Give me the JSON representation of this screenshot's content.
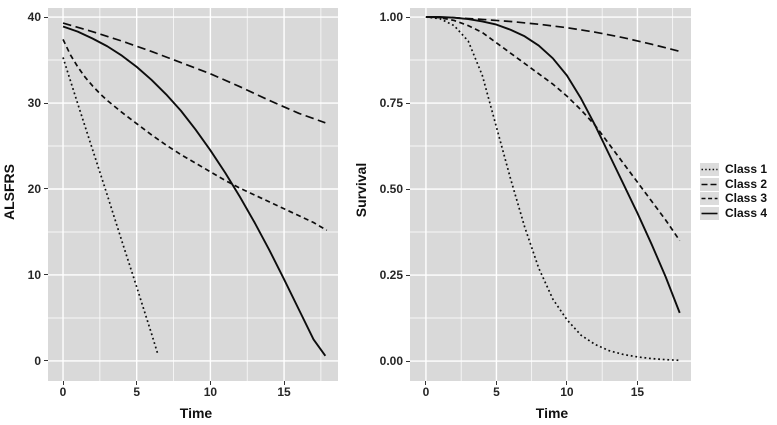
{
  "figure": {
    "background": "#ffffff",
    "description": "Two-panel line chart: latent class trajectories of ALSFRS over time (left) and survival probability over time (right) for four classes"
  },
  "colors": {
    "panel_bg": "#d9d9d9",
    "grid_major": "#ffffff",
    "grid_minor": "#ffffff",
    "line": "#0d0d0d",
    "tick_mark": "#333333",
    "text": "#111111",
    "legend_key_bg": "#dcdcdc"
  },
  "legend": {
    "position": "right",
    "entries": [
      {
        "label": "Class 1",
        "linetype": "dotted"
      },
      {
        "label": "Class 2",
        "linetype": "longdash"
      },
      {
        "label": "Class 3",
        "linetype": "dashed"
      },
      {
        "label": "Class 4",
        "linetype": "solid"
      }
    ]
  },
  "chart_data": [
    {
      "type": "line",
      "title": "",
      "xlabel": "Time",
      "ylabel": "ALSFRS",
      "xlim": [
        -1.02,
        18.66
      ],
      "ylim": [
        -2.33,
        41.05
      ],
      "xticks": [
        0,
        5,
        10,
        15
      ],
      "xtick_labels": [
        "0",
        "5",
        "10",
        "15"
      ],
      "xticks_minor": [
        2.5,
        7.5,
        12.5,
        17.5
      ],
      "yticks": [
        0,
        10,
        20,
        30,
        40
      ],
      "ytick_labels": [
        "0",
        "10",
        "20",
        "30",
        "40"
      ],
      "yticks_minor": [
        5,
        15,
        25,
        35
      ],
      "grid": true,
      "series": [
        {
          "name": "Class 1",
          "linetype": "dotted",
          "x": [
            0,
            1,
            2,
            3,
            4,
            5,
            6,
            6.45
          ],
          "y": [
            35.3,
            29.9,
            24.6,
            19.3,
            13.9,
            8.6,
            3.2,
            0.7
          ]
        },
        {
          "name": "Class 2",
          "linetype": "longdash",
          "x": [
            0,
            2,
            4,
            6,
            8,
            10,
            12,
            14,
            16,
            17.8
          ],
          "y": [
            39.3,
            38.3,
            37.2,
            36.0,
            34.7,
            33.4,
            31.9,
            30.3,
            28.8,
            27.7
          ]
        },
        {
          "name": "Class 3",
          "linetype": "dashed",
          "x": [
            0,
            0.5,
            1,
            1.5,
            2,
            2.5,
            3,
            4,
            5,
            6,
            7,
            8,
            9,
            10,
            11,
            12,
            13,
            14,
            15,
            16,
            17,
            17.9
          ],
          "y": [
            37.4,
            35.6,
            34.2,
            33.0,
            32.0,
            31.1,
            30.3,
            28.9,
            27.6,
            26.3,
            25.1,
            24.0,
            23.0,
            22.0,
            21.0,
            20.1,
            19.3,
            18.5,
            17.7,
            16.9,
            16.1,
            15.2
          ]
        },
        {
          "name": "Class 4",
          "linetype": "solid",
          "x": [
            0,
            1,
            2,
            3,
            4,
            5,
            6,
            7,
            8,
            9,
            10,
            11,
            12,
            13,
            14,
            15,
            16,
            17,
            17.8
          ],
          "y": [
            38.9,
            38.3,
            37.5,
            36.6,
            35.5,
            34.2,
            32.7,
            31.0,
            29.1,
            26.9,
            24.5,
            21.9,
            19.1,
            16.1,
            12.9,
            9.5,
            6.0,
            2.5,
            0.6
          ]
        }
      ]
    },
    {
      "type": "line",
      "title": "",
      "xlabel": "Time",
      "ylabel": "Survival",
      "xlim": [
        -1.13,
        18.8
      ],
      "ylim": [
        -0.0581,
        1.0262
      ],
      "xticks": [
        0,
        5,
        10,
        15
      ],
      "xtick_labels": [
        "0",
        "5",
        "10",
        "15"
      ],
      "xticks_minor": [
        2.5,
        7.5,
        12.5,
        17.5
      ],
      "yticks": [
        0.0,
        0.25,
        0.5,
        0.75,
        1.0
      ],
      "ytick_labels": [
        "0.00",
        "0.25",
        "0.50",
        "0.75",
        "1.00"
      ],
      "yticks_minor": [
        0.125,
        0.375,
        0.625,
        0.875
      ],
      "grid": true,
      "series": [
        {
          "name": "Class 1",
          "linetype": "dotted",
          "x": [
            0,
            1,
            2,
            3,
            4,
            5,
            6,
            7,
            8,
            9,
            10,
            11,
            12,
            13,
            14,
            15,
            16,
            17,
            18
          ],
          "y": [
            1.0,
            0.995,
            0.975,
            0.93,
            0.83,
            0.68,
            0.53,
            0.39,
            0.27,
            0.18,
            0.12,
            0.075,
            0.048,
            0.03,
            0.019,
            0.012,
            0.007,
            0.004,
            0.002
          ]
        },
        {
          "name": "Class 2",
          "linetype": "longdash",
          "x": [
            0,
            2,
            4,
            6,
            8,
            10,
            12,
            14,
            16,
            18
          ],
          "y": [
            1.0,
            0.998,
            0.993,
            0.987,
            0.979,
            0.969,
            0.956,
            0.94,
            0.921,
            0.9
          ]
        },
        {
          "name": "Class 3",
          "linetype": "dashed",
          "x": [
            0,
            1,
            2,
            3,
            4,
            5,
            6,
            7,
            8,
            9,
            10,
            11,
            12,
            13,
            14,
            15,
            16,
            17,
            18
          ],
          "y": [
            1.0,
            0.998,
            0.99,
            0.975,
            0.955,
            0.925,
            0.895,
            0.865,
            0.835,
            0.805,
            0.77,
            0.73,
            0.685,
            0.63,
            0.575,
            0.52,
            0.465,
            0.41,
            0.35
          ]
        },
        {
          "name": "Class 4",
          "linetype": "solid",
          "x": [
            0,
            1,
            2,
            3,
            4,
            5,
            6,
            7,
            8,
            9,
            10,
            11,
            12,
            13,
            14,
            15,
            16,
            17,
            18
          ],
          "y": [
            1.0,
            1.0,
            0.998,
            0.994,
            0.987,
            0.978,
            0.963,
            0.944,
            0.917,
            0.88,
            0.83,
            0.763,
            0.685,
            0.6,
            0.515,
            0.43,
            0.34,
            0.245,
            0.14
          ]
        }
      ]
    }
  ]
}
